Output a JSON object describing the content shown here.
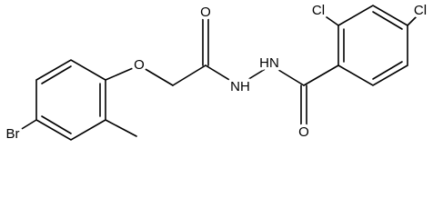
{
  "labels": [
    "Br",
    "O",
    "O",
    "NH",
    "HN",
    "O",
    "Cl",
    "Cl"
  ]
}
